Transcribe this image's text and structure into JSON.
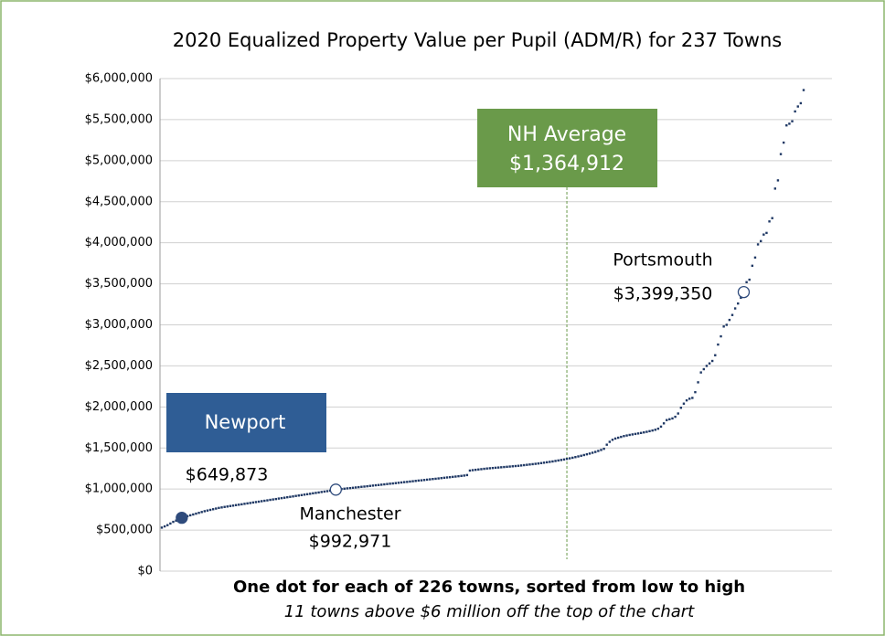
{
  "chart_data": {
    "type": "scatter",
    "title": "2020 Equalized Property Value per Pupil (ADM/R) for 237 Towns",
    "footer": "One dot for each of 226 towns, sorted from low to high",
    "subfooter": "11 towns above $6 million off the top of the chart",
    "color": "#1f3864",
    "ylim": [
      0,
      6000000
    ],
    "yticks": [
      {
        "value": 0,
        "label": "$0"
      },
      {
        "value": 500000,
        "label": "$500,000"
      },
      {
        "value": 1000000,
        "label": "$1,000,000"
      },
      {
        "value": 1500000,
        "label": "$1,500,000"
      },
      {
        "value": 2000000,
        "label": "$2,000,000"
      },
      {
        "value": 2500000,
        "label": "$2,500,000"
      },
      {
        "value": 3000000,
        "label": "$3,000,000"
      },
      {
        "value": 3500000,
        "label": "$3,500,000"
      },
      {
        "value": 4000000,
        "label": "$4,000,000"
      },
      {
        "value": 4500000,
        "label": "$4,500,000"
      },
      {
        "value": 5000000,
        "label": "$5,000,000"
      },
      {
        "value": 5500000,
        "label": "$5,500,000"
      },
      {
        "value": 6000000,
        "label": "$6,000,000"
      }
    ],
    "grid": true,
    "average": {
      "label": "NH Average",
      "value": 1364912,
      "value_label": "$1,364,912",
      "color": "#6a9a4a"
    },
    "highlights": [
      {
        "name": "Newport",
        "index": 7,
        "value_label": "$649,873",
        "filled": true,
        "box_color": "#2f5d95"
      },
      {
        "name": "Manchester",
        "index": 61,
        "value_label": "$992,971",
        "filled": false
      },
      {
        "name": "Portsmouth",
        "index": 204,
        "value_label": "$3,399,350",
        "filled": false
      }
    ],
    "values": [
      530000,
      545000,
      560000,
      580000,
      600000,
      615000,
      635000,
      649873,
      660000,
      670000,
      680000,
      690000,
      700000,
      710000,
      720000,
      730000,
      738000,
      746000,
      754000,
      762000,
      770000,
      776000,
      782000,
      787000,
      793000,
      798000,
      804000,
      809000,
      814000,
      820000,
      825000,
      830000,
      836000,
      841000,
      846000,
      852000,
      857000,
      862000,
      868000,
      873000,
      878000,
      884000,
      889000,
      894000,
      900000,
      905000,
      910000,
      916000,
      921000,
      926000,
      932000,
      937000,
      942000,
      948000,
      953000,
      958000,
      964000,
      969000,
      974000,
      980000,
      986000,
      992971,
      996000,
      1000000,
      1004000,
      1008000,
      1011000,
      1015000,
      1019000,
      1023000,
      1027000,
      1030000,
      1034000,
      1038000,
      1042000,
      1046000,
      1049000,
      1053000,
      1057000,
      1061000,
      1065000,
      1068000,
      1072000,
      1076000,
      1080000,
      1084000,
      1087000,
      1091000,
      1095000,
      1099000,
      1103000,
      1106000,
      1110000,
      1114000,
      1118000,
      1122000,
      1125000,
      1129000,
      1133000,
      1137000,
      1141000,
      1144000,
      1148000,
      1152000,
      1156000,
      1160000,
      1164000,
      1170000,
      1225000,
      1230000,
      1234000,
      1238000,
      1242000,
      1246000,
      1250000,
      1253000,
      1256000,
      1259000,
      1262000,
      1265000,
      1268000,
      1271000,
      1274000,
      1277000,
      1280000,
      1283000,
      1287000,
      1291000,
      1295000,
      1299000,
      1303000,
      1307000,
      1311000,
      1316000,
      1321000,
      1326000,
      1331000,
      1336000,
      1342000,
      1348000,
      1354000,
      1360000,
      1367000,
      1374000,
      1381000,
      1389000,
      1397000,
      1405000,
      1414000,
      1423000,
      1432000,
      1442000,
      1452000,
      1464000,
      1476000,
      1490000,
      1540000,
      1575000,
      1600000,
      1615000,
      1625000,
      1635000,
      1645000,
      1652000,
      1659000,
      1665000,
      1671000,
      1677000,
      1683000,
      1690000,
      1697000,
      1705000,
      1713000,
      1722000,
      1735000,
      1760000,
      1800000,
      1840000,
      1850000,
      1860000,
      1880000,
      1920000,
      1990000,
      2040000,
      2080000,
      2100000,
      2110000,
      2180000,
      2300000,
      2420000,
      2460000,
      2500000,
      2530000,
      2560000,
      2630000,
      2760000,
      2860000,
      2980000,
      3000000,
      3060000,
      3120000,
      3200000,
      3260000,
      3330000,
      3399350,
      3520000,
      3550000,
      3720000,
      3820000,
      3980000,
      4020000,
      4100000,
      4120000,
      4260000,
      4300000,
      4660000,
      4760000,
      5080000,
      5220000,
      5430000,
      5450000,
      5480000,
      5600000,
      5660000,
      5700000,
      5860000
    ]
  }
}
